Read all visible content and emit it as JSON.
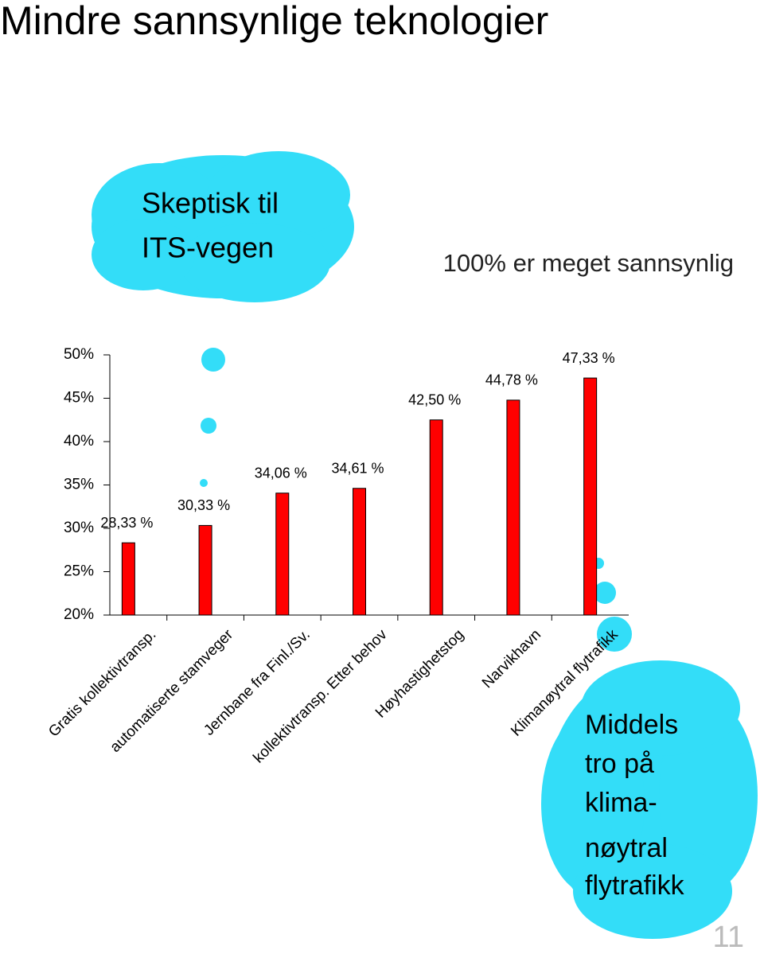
{
  "chart_data": {
    "type": "bar",
    "title": "Mindre sannsynlige teknologier",
    "subtitle": "100% er meget sannsynlig",
    "categories": [
      "Gratis kollektivtransp.",
      "automatiserte stamveger",
      "Jernbane fra Finl./Sv.",
      "kollektivtransp. Etter behov",
      "Høyhastighetstog",
      "Narvikhavn",
      "Klimanøytral flytrafikk"
    ],
    "values": [
      28.33,
      30.33,
      34.06,
      34.61,
      42.5,
      44.78,
      47.33
    ],
    "value_labels": [
      "28,33 %",
      "30,33 %",
      "34,06 %",
      "34,61 %",
      "42,50 %",
      "44,78 %",
      "47,33 %"
    ],
    "color": "#ff0000",
    "ylim": [
      20,
      50
    ],
    "yticks": [
      {
        "value": 20,
        "label": "20%"
      },
      {
        "value": 25,
        "label": "25%"
      },
      {
        "value": 30,
        "label": "30%"
      },
      {
        "value": 35,
        "label": "35%"
      },
      {
        "value": 40,
        "label": "40%"
      },
      {
        "value": 45,
        "label": "45%"
      },
      {
        "value": 50,
        "label": "50%"
      }
    ],
    "grid": false,
    "annotations": [
      [
        "Skeptisk til",
        "ITS-vegen"
      ],
      [
        "Middels",
        "tro på",
        "klima-",
        "nøytral",
        "flytrafikk"
      ]
    ]
  },
  "slide_number": "11"
}
